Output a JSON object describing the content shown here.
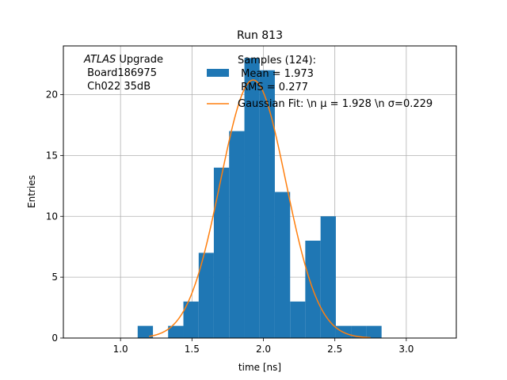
{
  "chart_data": {
    "type": "histogram",
    "title": "Run 813",
    "xlabel": "time [ns]",
    "ylabel": "Entries",
    "xlim": [
      0.6,
      3.35
    ],
    "ylim": [
      0,
      24
    ],
    "xticks": [
      1.0,
      1.5,
      2.0,
      2.5,
      3.0
    ],
    "xtick_labels": [
      "1.0",
      "1.5",
      "2.0",
      "2.5",
      "3.0"
    ],
    "yticks": [
      0,
      5,
      10,
      15,
      20
    ],
    "ytick_labels": [
      "0",
      "5",
      "10",
      "15",
      "20"
    ],
    "grid": true,
    "legend_position": "top-right",
    "annotation": {
      "line1_italic": "ATLAS",
      "line1_rest": " Upgrade",
      "line2": " Board186975",
      "line3": " Ch022 35dB"
    },
    "histogram": {
      "name_lines": [
        "Samples (124):",
        " Mean = 1.973",
        " RMS = 0.277"
      ],
      "color": "#1f77b4",
      "bin_edges": [
        1.12,
        1.227,
        1.333,
        1.44,
        1.547,
        1.653,
        1.76,
        1.867,
        1.973,
        2.08,
        2.187,
        2.293,
        2.4,
        2.507,
        2.613,
        2.72,
        2.827
      ],
      "counts": [
        1,
        0,
        1,
        3,
        7,
        14,
        17,
        23,
        22,
        12,
        3,
        8,
        10,
        1,
        1,
        1
      ]
    },
    "fit": {
      "name": "Gaussian Fit: \\n μ = 1.928 \\n σ=0.229",
      "color": "#ff7f0e",
      "mu": 1.928,
      "sigma": 0.229,
      "amplitude": 21.2,
      "x_range": [
        1.2,
        2.75
      ]
    }
  }
}
